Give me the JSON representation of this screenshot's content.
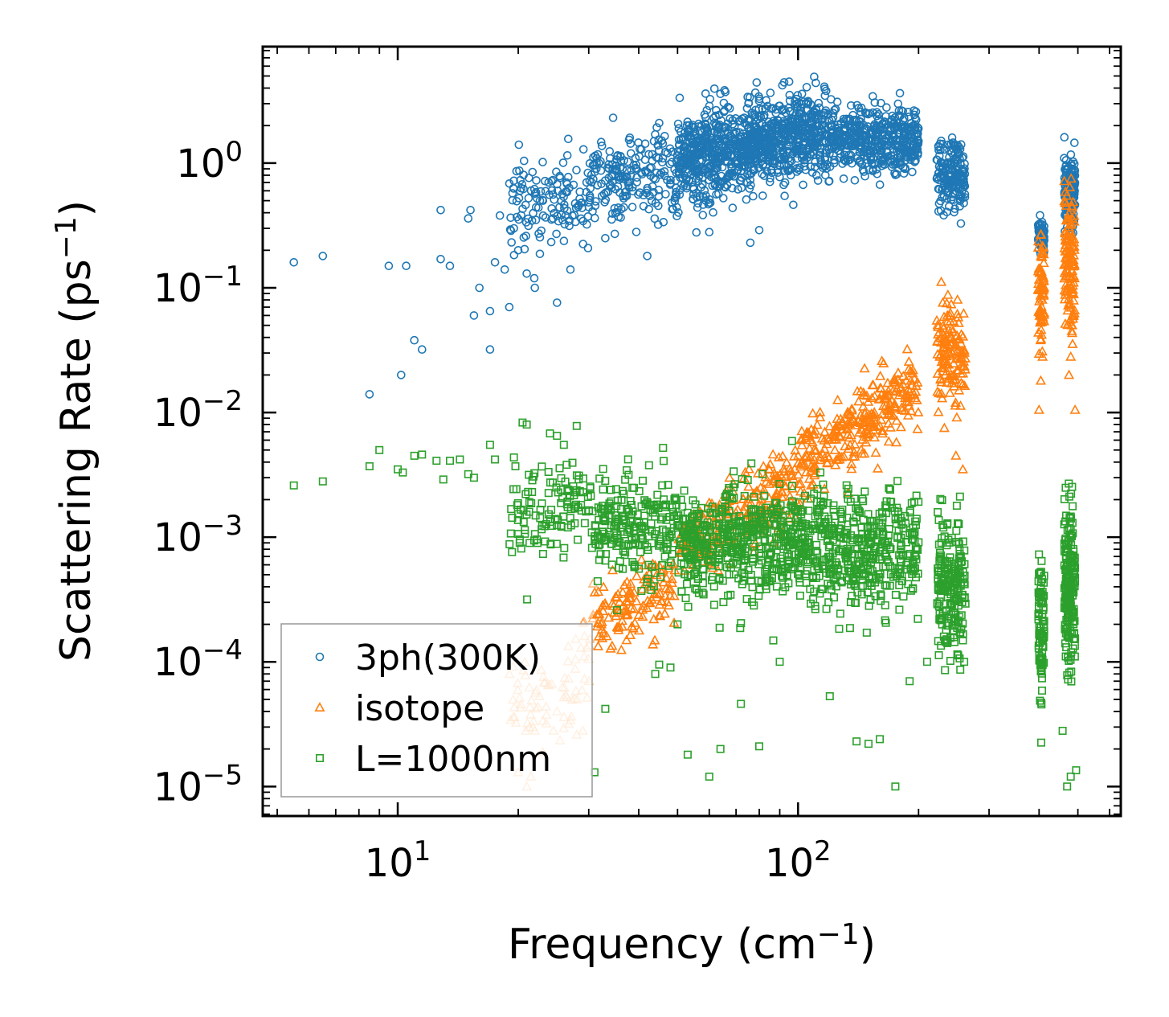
{
  "chart_data": {
    "type": "scatter",
    "xscale": "log",
    "yscale": "log",
    "xlim": [
      4.6,
      640
    ],
    "ylim": [
      5.8e-06,
      8.6
    ],
    "xlabel": {
      "main": "Frequency (cm",
      "sup": "−1",
      "tail": ")"
    },
    "ylabel": {
      "main": "Scattering Rate (ps",
      "sup": "−1",
      "tail": ")"
    },
    "xticks": [
      {
        "value": 10,
        "base": "10",
        "exp": "1"
      },
      {
        "value": 100,
        "base": "10",
        "exp": "2"
      }
    ],
    "yticks": [
      {
        "value": 1,
        "base": "10",
        "exp": "0"
      },
      {
        "value": 0.1,
        "base": "10",
        "exp": "−1"
      },
      {
        "value": 0.01,
        "base": "10",
        "exp": "−2"
      },
      {
        "value": 0.001,
        "base": "10",
        "exp": "−3"
      },
      {
        "value": 0.0001,
        "base": "10",
        "exp": "−4"
      },
      {
        "value": 1e-05,
        "base": "10",
        "exp": "−5"
      }
    ],
    "legend_position": "lower-left",
    "series": [
      {
        "name": "3ph(300K)",
        "marker": "circle",
        "color": "#1f77b4",
        "points": [
          [
            5.5,
            0.16
          ],
          [
            6.5,
            0.18
          ],
          [
            8.5,
            0.014
          ],
          [
            9.5,
            0.15
          ],
          [
            10.2,
            0.02
          ],
          [
            10.5,
            0.15
          ],
          [
            11,
            0.038
          ],
          [
            11.5,
            0.032
          ],
          [
            12.8,
            0.42
          ],
          [
            12.8,
            0.17
          ],
          [
            13.5,
            0.15
          ],
          [
            15,
            0.36
          ],
          [
            15.2,
            0.42
          ],
          [
            15.5,
            0.06
          ],
          [
            16,
            0.1
          ],
          [
            17,
            0.032
          ],
          [
            17,
            0.065
          ],
          [
            17.5,
            0.16
          ],
          [
            18,
            0.38
          ],
          [
            18.5,
            0.14
          ],
          [
            19,
            0.07
          ],
          [
            19.5,
            0.3
          ],
          [
            20,
            0.2
          ],
          [
            21,
            0.13
          ],
          [
            22,
            0.1
          ],
          [
            25,
            0.076
          ],
          [
            27,
            0.14
          ],
          [
            33,
            0.25
          ],
          [
            35,
            0.4
          ],
          [
            38,
            1.6
          ],
          [
            42,
            0.18
          ],
          [
            45,
            2.1
          ],
          [
            60,
            0.28
          ],
          [
            64,
            3.6
          ],
          [
            76,
            0.23
          ],
          [
            80,
            0.29
          ],
          [
            95,
            4.5
          ],
          [
            117,
            0.8
          ],
          [
            123,
            1.0
          ],
          [
            130,
            0.75
          ],
          [
            165,
            1.1
          ],
          [
            185,
            0.9
          ]
        ],
        "clusters": [
          {
            "x0": 19,
            "x1": 30,
            "yc": 0.5,
            "spread": 2.2,
            "slope": 0.4,
            "n": 130
          },
          {
            "x0": 30,
            "x1": 50,
            "yc": 0.75,
            "spread": 2.2,
            "slope": 0.4,
            "n": 200
          },
          {
            "x0": 50,
            "x1": 75,
            "yc": 1.2,
            "spread": 2.2,
            "slope": 0.4,
            "n": 450
          },
          {
            "x0": 75,
            "x1": 120,
            "yc": 1.6,
            "spread": 2.0,
            "slope": 0.3,
            "n": 550
          },
          {
            "x0": 120,
            "x1": 200,
            "yc": 1.6,
            "spread": 1.7,
            "slope": -0.2,
            "n": 450
          },
          {
            "x0": 222,
            "x1": 262,
            "yc": 0.8,
            "spread": 1.8,
            "slope": 0,
            "n": 170
          },
          {
            "x0": 398,
            "x1": 412,
            "yc": 0.27,
            "spread": 1.3,
            "slope": 0,
            "n": 60
          },
          {
            "x0": 462,
            "x1": 492,
            "yc": 0.6,
            "spread": 1.8,
            "slope": 0,
            "n": 160
          }
        ]
      },
      {
        "name": "isotope",
        "marker": "triangle",
        "color": "#ff7f0e",
        "faint_below_x": 31,
        "points": [
          [
            20,
            1.3e-05
          ],
          [
            21,
            1e-05
          ],
          [
            21.5,
            1.2e-05
          ],
          [
            22,
            2.8e-05
          ],
          [
            23,
            1.9e-05
          ],
          [
            23.5,
            3.2e-05
          ],
          [
            24.5,
            2.8e-05
          ],
          [
            25,
            4e-05
          ],
          [
            26,
            3.6e-05
          ],
          [
            27,
            3.4e-05
          ],
          [
            28,
            2.6e-05
          ],
          [
            29,
            2.8e-05
          ],
          [
            30,
            7e-05
          ],
          [
            229,
            0.013
          ],
          [
            232,
            0.0075
          ],
          [
            248,
            0.0045
          ],
          [
            258,
            0.0035
          ],
          [
            400,
            0.0105
          ],
          [
            404,
            0.018
          ],
          [
            406,
            0.042
          ],
          [
            408,
            0.028
          ],
          [
            475,
            0.02
          ],
          [
            480,
            0.028
          ],
          [
            484,
            0.05
          ],
          [
            492,
            0.0105
          ]
        ],
        "clusters": [
          {
            "x0": 19,
            "x1": 30,
            "yc": 6e-05,
            "spread": 2.0,
            "slope": 1.5,
            "n": 70
          },
          {
            "x0": 30,
            "x1": 50,
            "yc": 0.00028,
            "spread": 1.8,
            "slope": 1.5,
            "n": 130
          },
          {
            "x0": 50,
            "x1": 100,
            "yc": 0.0015,
            "spread": 1.9,
            "slope": 1.8,
            "n": 220
          },
          {
            "x0": 100,
            "x1": 200,
            "yc": 0.008,
            "spread": 1.9,
            "slope": 2.0,
            "n": 280
          },
          {
            "x0": 222,
            "x1": 262,
            "yc": 0.03,
            "spread": 2.4,
            "slope": 0,
            "n": 130
          },
          {
            "x0": 398,
            "x1": 412,
            "yc": 0.1,
            "spread": 2.6,
            "slope": 0,
            "n": 70
          },
          {
            "x0": 462,
            "x1": 492,
            "yc": 0.15,
            "spread": 2.8,
            "slope": 0,
            "n": 130
          }
        ]
      },
      {
        "name": "L=1000nm",
        "marker": "square",
        "color": "#2ca02c",
        "points": [
          [
            5.5,
            0.0026
          ],
          [
            6.5,
            0.0028
          ],
          [
            8.5,
            0.0037
          ],
          [
            9,
            0.005
          ],
          [
            10,
            0.0035
          ],
          [
            10.3,
            0.0033
          ],
          [
            11,
            0.0045
          ],
          [
            11.5,
            0.0046
          ],
          [
            12.5,
            0.0041
          ],
          [
            13,
            0.0029
          ],
          [
            13.5,
            0.0041
          ],
          [
            14.3,
            0.0042
          ],
          [
            15,
            0.0032
          ],
          [
            15.5,
            0.003
          ],
          [
            17,
            0.0055
          ],
          [
            17.5,
            0.0042
          ],
          [
            20.5,
            0.0083
          ],
          [
            21,
            0.008
          ],
          [
            24,
            0.0068
          ],
          [
            25,
            0.0065
          ],
          [
            26,
            0.0055
          ],
          [
            28,
            0.0078
          ],
          [
            31,
            1.3e-05
          ],
          [
            33,
            4.2e-05
          ],
          [
            44,
            8e-05
          ],
          [
            45,
            9.5e-05
          ],
          [
            46,
            0.0052
          ],
          [
            48,
            9e-05
          ],
          [
            50,
            0.0002
          ],
          [
            53,
            1.8e-05
          ],
          [
            60,
            1.2e-05
          ],
          [
            64,
            2e-05
          ],
          [
            72,
            4.6e-05
          ],
          [
            80,
            2.1e-05
          ],
          [
            90,
            0.0001
          ],
          [
            120,
            5.3e-05
          ],
          [
            140,
            2.3e-05
          ],
          [
            150,
            2.2e-05
          ],
          [
            160,
            2.4e-05
          ],
          [
            175,
            1e-05
          ],
          [
            190,
            7e-05
          ],
          [
            210,
            0.0001
          ],
          [
            260,
            0.0001
          ],
          [
            405,
            2.25e-05
          ],
          [
            405,
            4.7e-05
          ],
          [
            458,
            2.8e-05
          ],
          [
            470,
            1e-05
          ],
          [
            480,
            1.2e-05
          ],
          [
            495,
            1.35e-05
          ]
        ],
        "clusters": [
          {
            "x0": 19,
            "x1": 31,
            "yc": 0.0017,
            "spread": 2.2,
            "slope": 0,
            "n": 120
          },
          {
            "x0": 31,
            "x1": 50,
            "yc": 0.0012,
            "spread": 2.4,
            "slope": 0,
            "n": 220
          },
          {
            "x0": 50,
            "x1": 100,
            "yc": 0.0009,
            "spread": 2.5,
            "slope": 0,
            "n": 480
          },
          {
            "x0": 100,
            "x1": 200,
            "yc": 0.0008,
            "spread": 2.6,
            "slope": 0,
            "n": 480
          },
          {
            "x0": 222,
            "x1": 262,
            "yc": 0.0004,
            "spread": 3.2,
            "slope": 0,
            "n": 200
          },
          {
            "x0": 398,
            "x1": 412,
            "yc": 0.0002,
            "spread": 3.2,
            "slope": 0,
            "n": 90
          },
          {
            "x0": 462,
            "x1": 492,
            "yc": 0.0004,
            "spread": 3.5,
            "slope": 0,
            "n": 200
          }
        ]
      }
    ]
  }
}
